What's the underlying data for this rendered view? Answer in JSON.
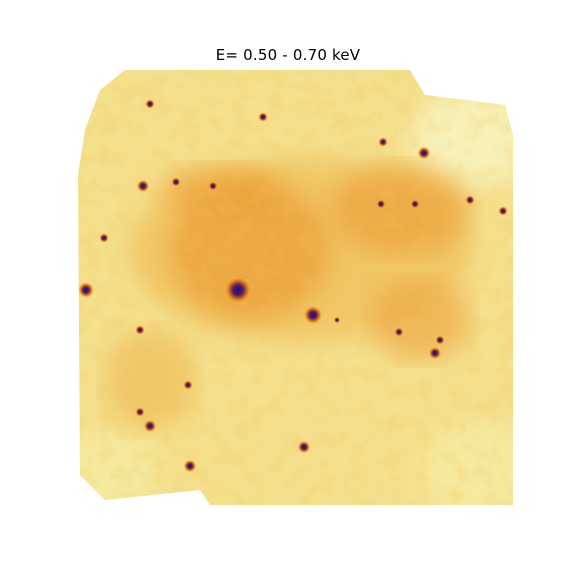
{
  "title": "E= 0.50 - 0.70 keV",
  "image": {
    "colormap": [
      "#f7f1b8",
      "#f4df8c",
      "#f0c25e",
      "#eca13a",
      "#e8861f",
      "#b44a0f",
      "#5a1c55",
      "#1a0a8c"
    ],
    "background_color": "#ffffff"
  }
}
